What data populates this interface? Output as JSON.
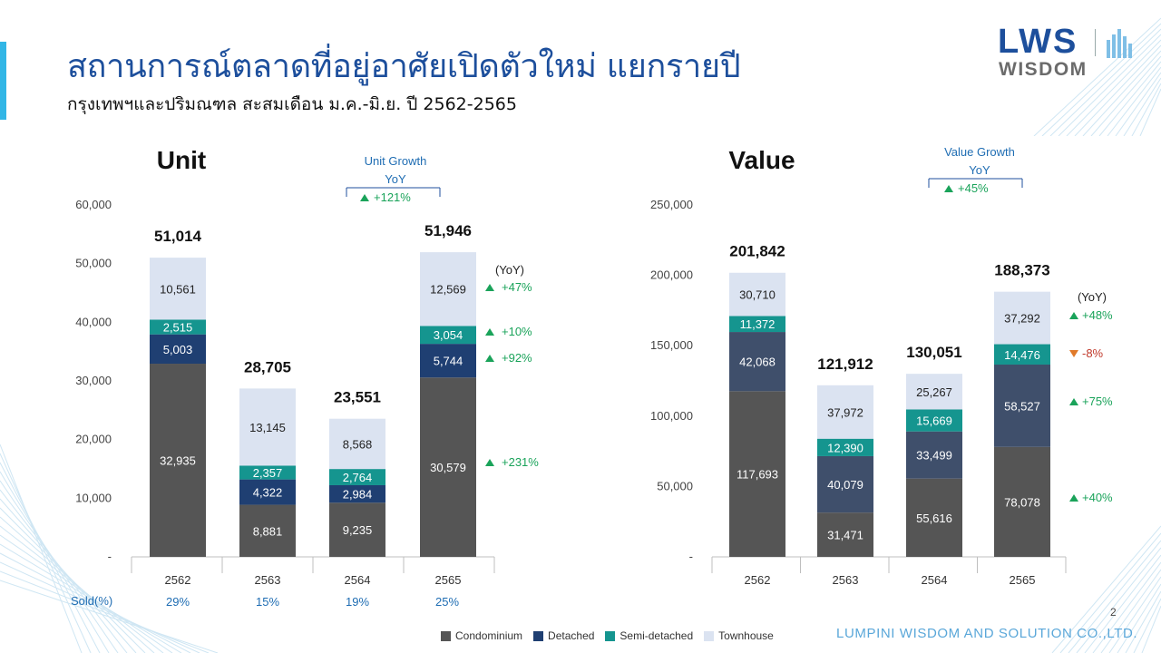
{
  "header": {
    "title": "สถานการณ์ตลาดที่อยู่อาศัยเปิดตัวใหม่ แยกรายปี",
    "subtitle": "กรุงเทพฯและปริมณฑล สะสมเดือน ม.ค.-มิ.ย. ปี 2562-2565"
  },
  "logo": {
    "top": "LWS",
    "bottom": "WISDOM"
  },
  "footer": {
    "page": "2",
    "company": "LUMPINI WISDOM AND SOLUTION CO.,LTD."
  },
  "legend": [
    {
      "name": "Condominium",
      "color": "#555555"
    },
    {
      "name": "Detached",
      "color": "#1f3f72"
    },
    {
      "name": "Semi-detached",
      "color": "#15958f"
    },
    {
      "name": "Townhouse",
      "color": "#dbe3f1"
    }
  ],
  "sold": {
    "label": "Sold(%)",
    "values": [
      "29%",
      "15%",
      "19%",
      "25%"
    ]
  },
  "chart_data": [
    {
      "type": "bar",
      "stacked": true,
      "title": "Unit",
      "categories": [
        "2562",
        "2563",
        "2564",
        "2565"
      ],
      "series": [
        {
          "name": "Condominium",
          "values": [
            32935,
            8881,
            9235,
            30579
          ],
          "labels": [
            "32,935",
            "8,881",
            "9,235",
            "30,579"
          ],
          "color": "#555555",
          "label_color": "#ffffff"
        },
        {
          "name": "Detached",
          "values": [
            5003,
            4322,
            2984,
            5744
          ],
          "labels": [
            "5,003",
            "4,322",
            "2,984",
            "5,744"
          ],
          "color": "#1f3f72",
          "label_color": "#ffffff"
        },
        {
          "name": "Semi-detached",
          "values": [
            2515,
            2357,
            2764,
            3054
          ],
          "labels": [
            "2,515",
            "2,357",
            "2,764",
            "3,054"
          ],
          "color": "#15958f",
          "label_color": "#ffffff"
        },
        {
          "name": "Townhouse",
          "values": [
            10561,
            13145,
            8568,
            12569
          ],
          "labels": [
            "10,561",
            "13,145",
            "8,568",
            "12,569"
          ],
          "color": "#dbe3f1",
          "label_color": "#222222"
        }
      ],
      "totals": [
        "51,014",
        "28,705",
        "23,551",
        "51,946"
      ],
      "ylim": [
        0,
        60000
      ],
      "yticks": [
        0,
        10000,
        20000,
        30000,
        40000,
        50000,
        60000
      ],
      "ytick_labels": [
        "-",
        "10,000",
        "20,000",
        "30,000",
        "40,000",
        "50,000",
        "60,000"
      ],
      "growth": {
        "title": "Unit Growth",
        "title2": "YoY",
        "value": "+121%",
        "direction": "up"
      },
      "yoy_header": "(YoY)",
      "yoy": [
        {
          "series": "Townhouse",
          "value": "+47%",
          "direction": "up"
        },
        {
          "series": "Semi-detached",
          "value": "+10%",
          "direction": "up"
        },
        {
          "series": "Detached",
          "value": "+92%",
          "direction": "up"
        },
        {
          "series": "Condominium",
          "value": "+231%",
          "direction": "up"
        }
      ]
    },
    {
      "type": "bar",
      "stacked": true,
      "title": "Value",
      "categories": [
        "2562",
        "2563",
        "2564",
        "2565"
      ],
      "series": [
        {
          "name": "Condominium",
          "values": [
            117693,
            31471,
            55616,
            78078
          ],
          "labels": [
            "117,693",
            "31,471",
            "55,616",
            "78,078"
          ],
          "color": "#555555",
          "label_color": "#ffffff"
        },
        {
          "name": "Detached",
          "values": [
            42068,
            40079,
            33499,
            58527
          ],
          "labels": [
            "42,068",
            "40,079",
            "33,499",
            "58,527"
          ],
          "color": "#3f4f6b",
          "label_color": "#ffffff"
        },
        {
          "name": "Semi-detached",
          "values": [
            11372,
            12390,
            15669,
            14476
          ],
          "labels": [
            "11,372",
            "12,390",
            "15,669",
            "14,476"
          ],
          "color": "#15958f",
          "label_color": "#ffffff"
        },
        {
          "name": "Townhouse",
          "values": [
            30710,
            37972,
            25267,
            37292
          ],
          "labels": [
            "30,710",
            "37,972",
            "25,267",
            "37,292"
          ],
          "color": "#dbe3f1",
          "label_color": "#222222"
        }
      ],
      "totals": [
        "201,842",
        "121,912",
        "130,051",
        "188,373"
      ],
      "ylim": [
        0,
        250000
      ],
      "yticks": [
        0,
        50000,
        100000,
        150000,
        200000,
        250000
      ],
      "ytick_labels": [
        "-",
        "50,000",
        "100,000",
        "150,000",
        "200,000",
        "250,000"
      ],
      "growth": {
        "title": "Value Growth",
        "title2": "YoY",
        "value": "+45%",
        "direction": "up"
      },
      "yoy_header": "(YoY)",
      "yoy": [
        {
          "series": "Townhouse",
          "value": "+48%",
          "direction": "up"
        },
        {
          "series": "Semi-detached",
          "value": "-8%",
          "direction": "down"
        },
        {
          "series": "Detached",
          "value": "+75%",
          "direction": "up"
        },
        {
          "series": "Condominium",
          "value": "+40%",
          "direction": "up"
        }
      ]
    }
  ]
}
